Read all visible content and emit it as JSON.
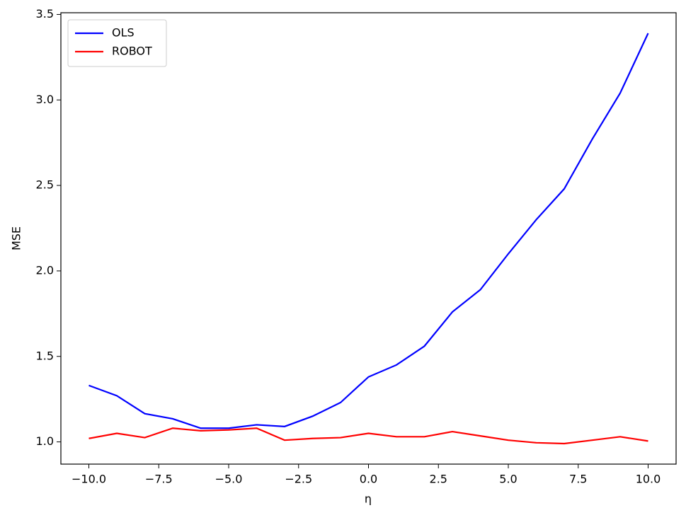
{
  "chart_data": {
    "type": "line",
    "xlabel": "η",
    "ylabel": "MSE",
    "x": [
      -10,
      -9,
      -8,
      -7,
      -6,
      -5,
      -4,
      -3,
      -2,
      -1,
      0,
      1,
      2,
      3,
      4,
      5,
      6,
      7,
      8,
      9,
      10
    ],
    "series": [
      {
        "name": "OLS",
        "color": "#0000ff",
        "values": [
          1.33,
          1.27,
          1.165,
          1.135,
          1.08,
          1.08,
          1.1,
          1.09,
          1.15,
          1.23,
          1.38,
          1.45,
          1.56,
          1.76,
          1.89,
          2.1,
          2.3,
          2.48,
          2.77,
          3.04,
          3.39
        ]
      },
      {
        "name": "ROBOT",
        "color": "#ff0000",
        "values": [
          1.02,
          1.05,
          1.025,
          1.08,
          1.065,
          1.07,
          1.08,
          1.01,
          1.02,
          1.025,
          1.05,
          1.03,
          1.03,
          1.06,
          1.035,
          1.01,
          0.995,
          0.99,
          1.01,
          1.03,
          1.005
        ]
      }
    ],
    "xlim": [
      -11,
      11
    ],
    "ylim": [
      0.87,
      3.51
    ],
    "xticks": [
      {
        "value": -10,
        "label": "−10.0"
      },
      {
        "value": -7.5,
        "label": "−7.5"
      },
      {
        "value": -5,
        "label": "−5.0"
      },
      {
        "value": -2.5,
        "label": "−2.5"
      },
      {
        "value": 0,
        "label": "0.0"
      },
      {
        "value": 2.5,
        "label": "2.5"
      },
      {
        "value": 5,
        "label": "5.0"
      },
      {
        "value": 7.5,
        "label": "7.5"
      },
      {
        "value": 10,
        "label": "10.0"
      }
    ],
    "yticks": [
      {
        "value": 1,
        "label": "1.0"
      },
      {
        "value": 1.5,
        "label": "1.5"
      },
      {
        "value": 2,
        "label": "2.0"
      },
      {
        "value": 2.5,
        "label": "2.5"
      },
      {
        "value": 3,
        "label": "3.0"
      },
      {
        "value": 3.5,
        "label": "3.5"
      }
    ],
    "legend": "upper left",
    "grid": false
  }
}
